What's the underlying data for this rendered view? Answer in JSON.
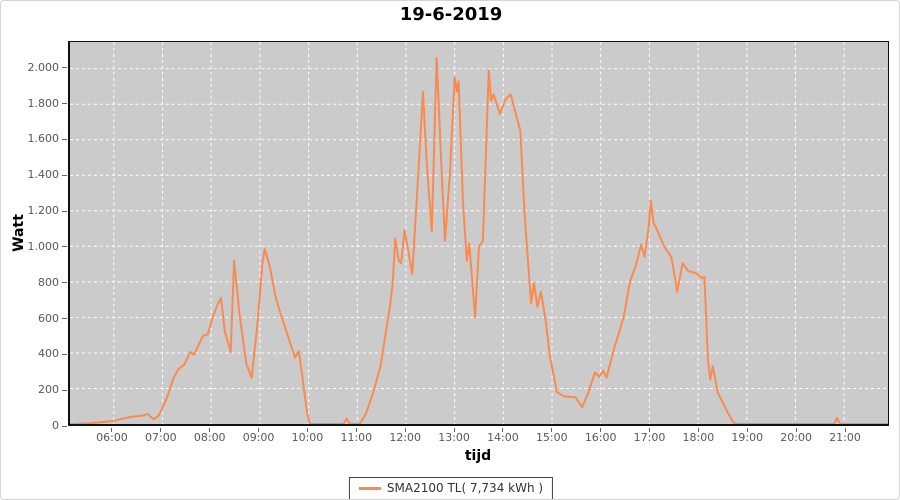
{
  "title": "19-6-2019",
  "legend": {
    "label": "SMA2100 TL( 7,734 kWh )"
  },
  "colors": {
    "line": "#f98a50",
    "plot_bg": "#cbcbcb",
    "grid": "#ffffff",
    "tick_label": "#595959",
    "plot_border": "#111111"
  },
  "chart_data": {
    "type": "line",
    "title": "19-6-2019",
    "xlabel": "tijd",
    "ylabel": "Watt",
    "x_unit": "hour of day",
    "y_unit": "Watt",
    "xlim": [
      5.1,
      21.9
    ],
    "ylim": [
      0,
      2150
    ],
    "grid": "white dashed on gray plot",
    "legend_position": "bottom-center",
    "xticks": [
      {
        "h": 6,
        "label": "06:00"
      },
      {
        "h": 7,
        "label": "07:00"
      },
      {
        "h": 8,
        "label": "08:00"
      },
      {
        "h": 9,
        "label": "09:00"
      },
      {
        "h": 10,
        "label": "10:00"
      },
      {
        "h": 11,
        "label": "11:00"
      },
      {
        "h": 12,
        "label": "12:00"
      },
      {
        "h": 13,
        "label": "13:00"
      },
      {
        "h": 14,
        "label": "14:00"
      },
      {
        "h": 15,
        "label": "15:00"
      },
      {
        "h": 16,
        "label": "16:00"
      },
      {
        "h": 17,
        "label": "17:00"
      },
      {
        "h": 18,
        "label": "18:00"
      },
      {
        "h": 19,
        "label": "19:00"
      },
      {
        "h": 20,
        "label": "20:00"
      },
      {
        "h": 21,
        "label": "21:00"
      }
    ],
    "yticks": [
      {
        "v": 0,
        "label": "0"
      },
      {
        "v": 200,
        "label": "200"
      },
      {
        "v": 400,
        "label": "400"
      },
      {
        "v": 600,
        "label": "600"
      },
      {
        "v": 800,
        "label": "800"
      },
      {
        "v": 1000,
        "label": "1.000"
      },
      {
        "v": 1200,
        "label": "1.200"
      },
      {
        "v": 1400,
        "label": "1.400"
      },
      {
        "v": 1600,
        "label": "1.600"
      },
      {
        "v": 1800,
        "label": "1.800"
      },
      {
        "v": 2000,
        "label": "2.000"
      }
    ],
    "series": [
      {
        "name": "SMA2100 TL( 7,734 kWh )",
        "color": "#f98a50",
        "daily_yield_kwh": "7,734",
        "points": [
          [
            5.1,
            0
          ],
          [
            5.5,
            4
          ],
          [
            5.8,
            12
          ],
          [
            6.0,
            18
          ],
          [
            6.15,
            28
          ],
          [
            6.35,
            40
          ],
          [
            6.55,
            46
          ],
          [
            6.7,
            56
          ],
          [
            6.82,
            26
          ],
          [
            6.93,
            50
          ],
          [
            7.03,
            110
          ],
          [
            7.12,
            170
          ],
          [
            7.22,
            255
          ],
          [
            7.33,
            310
          ],
          [
            7.45,
            335
          ],
          [
            7.57,
            405
          ],
          [
            7.65,
            390
          ],
          [
            7.75,
            450
          ],
          [
            7.83,
            495
          ],
          [
            7.93,
            505
          ],
          [
            8.02,
            590
          ],
          [
            8.12,
            665
          ],
          [
            8.2,
            710
          ],
          [
            8.28,
            520
          ],
          [
            8.4,
            405
          ],
          [
            8.47,
            920
          ],
          [
            8.58,
            620
          ],
          [
            8.72,
            340
          ],
          [
            8.83,
            262
          ],
          [
            8.95,
            560
          ],
          [
            9.05,
            900
          ],
          [
            9.1,
            985
          ],
          [
            9.2,
            890
          ],
          [
            9.32,
            720
          ],
          [
            9.43,
            615
          ],
          [
            9.57,
            500
          ],
          [
            9.72,
            374
          ],
          [
            9.8,
            410
          ],
          [
            9.88,
            250
          ],
          [
            9.97,
            60
          ],
          [
            10.03,
            0
          ],
          [
            10.72,
            0
          ],
          [
            10.78,
            30
          ],
          [
            10.85,
            0
          ],
          [
            11.05,
            0
          ],
          [
            11.18,
            60
          ],
          [
            11.33,
            180
          ],
          [
            11.48,
            330
          ],
          [
            11.6,
            540
          ],
          [
            11.67,
            660
          ],
          [
            11.73,
            800
          ],
          [
            11.78,
            1045
          ],
          [
            11.85,
            920
          ],
          [
            11.9,
            905
          ],
          [
            11.97,
            1090
          ],
          [
            12.03,
            1000
          ],
          [
            12.13,
            845
          ],
          [
            12.23,
            1300
          ],
          [
            12.35,
            1870
          ],
          [
            12.42,
            1500
          ],
          [
            12.53,
            1085
          ],
          [
            12.63,
            2060
          ],
          [
            12.72,
            1500
          ],
          [
            12.8,
            1030
          ],
          [
            12.9,
            1400
          ],
          [
            13.0,
            1950
          ],
          [
            13.05,
            1870
          ],
          [
            13.08,
            1930
          ],
          [
            13.17,
            1250
          ],
          [
            13.25,
            920
          ],
          [
            13.3,
            1017
          ],
          [
            13.42,
            600
          ],
          [
            13.5,
            1000
          ],
          [
            13.58,
            1030
          ],
          [
            13.7,
            1990
          ],
          [
            13.75,
            1820
          ],
          [
            13.8,
            1855
          ],
          [
            13.93,
            1745
          ],
          [
            14.05,
            1830
          ],
          [
            14.15,
            1855
          ],
          [
            14.35,
            1650
          ],
          [
            14.42,
            1257
          ],
          [
            14.47,
            1050
          ],
          [
            14.57,
            680
          ],
          [
            14.63,
            793
          ],
          [
            14.7,
            660
          ],
          [
            14.77,
            744
          ],
          [
            14.87,
            580
          ],
          [
            14.95,
            390
          ],
          [
            15.1,
            180
          ],
          [
            15.25,
            155
          ],
          [
            15.48,
            150
          ],
          [
            15.62,
            95
          ],
          [
            15.75,
            180
          ],
          [
            15.88,
            290
          ],
          [
            15.97,
            265
          ],
          [
            16.05,
            300
          ],
          [
            16.12,
            262
          ],
          [
            16.28,
            430
          ],
          [
            16.47,
            600
          ],
          [
            16.6,
            800
          ],
          [
            16.73,
            900
          ],
          [
            16.83,
            1010
          ],
          [
            16.9,
            940
          ],
          [
            16.98,
            1100
          ],
          [
            17.03,
            1257
          ],
          [
            17.08,
            1136
          ],
          [
            17.17,
            1085
          ],
          [
            17.3,
            1000
          ],
          [
            17.45,
            940
          ],
          [
            17.52,
            828
          ],
          [
            17.57,
            745
          ],
          [
            17.68,
            905
          ],
          [
            17.8,
            860
          ],
          [
            17.95,
            850
          ],
          [
            18.08,
            820
          ],
          [
            18.13,
            828
          ],
          [
            18.2,
            363
          ],
          [
            18.25,
            251
          ],
          [
            18.3,
            326
          ],
          [
            18.4,
            179
          ],
          [
            18.57,
            84
          ],
          [
            18.72,
            10
          ],
          [
            18.8,
            0
          ],
          [
            20.8,
            0
          ],
          [
            20.85,
            35
          ],
          [
            20.92,
            0
          ],
          [
            21.9,
            0
          ]
        ]
      }
    ]
  }
}
